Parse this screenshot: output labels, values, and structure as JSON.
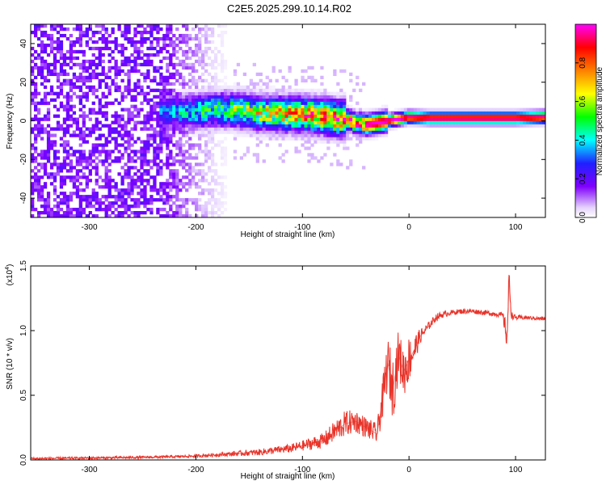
{
  "chart_data": [
    {
      "type": "heatmap",
      "title": "C2E5.2025.299.10.14.R02",
      "xlabel": "Height of straight line (km)",
      "ylabel": "Frequency (Hz)",
      "xlim": [
        -355,
        128
      ],
      "ylim": [
        -50,
        50
      ],
      "xticks": [
        -300,
        -200,
        -100,
        0,
        100
      ],
      "xtick_labels": [
        "-300",
        "-200",
        "-100",
        "0",
        "100"
      ],
      "yticks": [
        -40,
        -20,
        0,
        20,
        40
      ],
      "ytick_labels": [
        "-40",
        "-20",
        "0",
        "20",
        "40"
      ],
      "colorbar": {
        "label": "Normalized spectral amplitude",
        "range": [
          0,
          1
        ],
        "ticks": [
          0.0,
          0.2,
          0.4,
          0.6,
          0.8
        ],
        "tick_labels": [
          "0.0",
          "0.2",
          "0.4",
          "0.6",
          "0.8"
        ],
        "colormap": [
          "#ffffff",
          "#e6d4ff",
          "#8000ff",
          "#2020ff",
          "#00ffff",
          "#00ff00",
          "#ffff00",
          "#ff8000",
          "#ff0000",
          "#ff00ff"
        ]
      },
      "noise_region": {
        "x": [
          -355,
          -165
        ],
        "y": [
          -50,
          50
        ],
        "amplitude": 0.15
      },
      "ridge": [
        {
          "x": -235,
          "y": 5.0
        },
        {
          "x": -210,
          "y": 4.5
        },
        {
          "x": -180,
          "y": 6.0
        },
        {
          "x": -160,
          "y": 5.5
        },
        {
          "x": -140,
          "y": 4.0
        },
        {
          "x": -120,
          "y": 3.5
        },
        {
          "x": -100,
          "y": 3.5
        },
        {
          "x": -80,
          "y": 2.5
        },
        {
          "x": -70,
          "y": 1.5
        },
        {
          "x": -60,
          "y": 1.0
        },
        {
          "x": -50,
          "y": -1.0
        },
        {
          "x": -40,
          "y": -2.0
        },
        {
          "x": -30,
          "y": -1.0
        },
        {
          "x": -20,
          "y": 0.0
        },
        {
          "x": -10,
          "y": 1.0
        },
        {
          "x": 0,
          "y": 2.0
        },
        {
          "x": 20,
          "y": 1.5
        },
        {
          "x": 60,
          "y": 1.5
        },
        {
          "x": 100,
          "y": 1.5
        },
        {
          "x": 128,
          "y": 2.0
        }
      ]
    },
    {
      "type": "line",
      "xlabel": "Height of straight line (km)",
      "ylabel": "SNR (10 * v/v)",
      "y_multiplier": "(x10",
      "y_multiplier_exp": "4",
      "y_multiplier_close": ")",
      "xlim": [
        -355,
        128
      ],
      "ylim": [
        0,
        1.5
      ],
      "xticks": [
        -300,
        -200,
        -100,
        0,
        100
      ],
      "xtick_labels": [
        "-300",
        "-200",
        "-100",
        "0",
        "100"
      ],
      "yticks": [
        0.0,
        0.5,
        1.0,
        1.5
      ],
      "ytick_labels": [
        "0.0",
        "0.5",
        "1.0",
        "1.5"
      ],
      "color": "#e8342a",
      "series": [
        {
          "name": "SNR",
          "x": [
            -355,
            -300,
            -250,
            -220,
            -200,
            -180,
            -160,
            -140,
            -120,
            -110,
            -100,
            -90,
            -80,
            -70,
            -60,
            -50,
            -40,
            -30,
            -25,
            -20,
            -15,
            -10,
            -5,
            0,
            5,
            10,
            15,
            20,
            25,
            30,
            40,
            50,
            60,
            70,
            80,
            88,
            92,
            94,
            96,
            100,
            110,
            128
          ],
          "y": [
            0.01,
            0.015,
            0.02,
            0.025,
            0.03,
            0.04,
            0.05,
            0.06,
            0.08,
            0.09,
            0.11,
            0.13,
            0.15,
            0.22,
            0.28,
            0.3,
            0.25,
            0.2,
            0.45,
            0.75,
            0.55,
            0.82,
            0.68,
            0.78,
            0.85,
            0.95,
            1.0,
            1.05,
            1.1,
            1.12,
            1.14,
            1.15,
            1.15,
            1.14,
            1.13,
            1.12,
            0.95,
            1.4,
            1.12,
            1.1,
            1.1,
            1.09
          ],
          "noise": [
            0.01,
            0.01,
            0.01,
            0.01,
            0.012,
            0.015,
            0.02,
            0.025,
            0.03,
            0.035,
            0.04,
            0.05,
            0.06,
            0.08,
            0.1,
            0.09,
            0.08,
            0.08,
            0.15,
            0.2,
            0.25,
            0.18,
            0.2,
            0.18,
            0.12,
            0.06,
            0.04,
            0.03,
            0.03,
            0.025,
            0.02,
            0.02,
            0.02,
            0.02,
            0.02,
            0.02,
            0.12,
            0.1,
            0.03,
            0.02,
            0.015,
            0.015
          ]
        }
      ]
    }
  ]
}
